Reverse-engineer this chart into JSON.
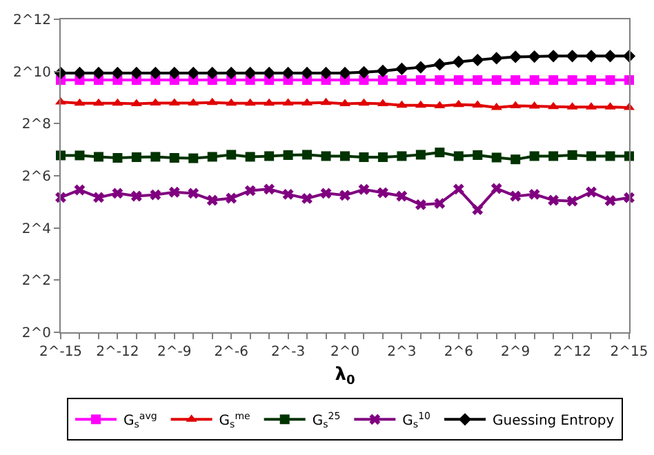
{
  "chart_data": {
    "type": "line",
    "xlabel": "λ$_{0}$",
    "x": [
      3.0517578125e-05,
      6.103515625e-05,
      0.0001220703125,
      0.000244140625,
      0.00048828125,
      0.0009765625,
      0.001953125,
      0.00390625,
      0.0078125,
      0.015625,
      0.03125,
      0.0625,
      0.125,
      0.25,
      0.5,
      1,
      2,
      4,
      8,
      16,
      32,
      64,
      128,
      256,
      512,
      1024,
      2048,
      4096,
      8192,
      16384,
      32768
    ],
    "series": [
      {
        "name": "G$_{s}$$^{avg}$",
        "color": "#ff00ff",
        "marker": "square",
        "values": [
          815,
          815,
          815,
          815,
          815,
          815,
          815,
          815,
          815,
          815,
          815,
          815,
          815,
          815,
          815,
          815,
          815,
          815,
          815,
          815,
          815,
          815,
          815,
          815,
          815,
          815,
          815,
          815,
          815,
          815,
          815
        ]
      },
      {
        "name": "G$_{s}$$^{me}$",
        "color": "#e00000",
        "marker": "triangle",
        "values": [
          455,
          440,
          440,
          440,
          434,
          443,
          443,
          443,
          449,
          440,
          440,
          440,
          443,
          443,
          449,
          434,
          440,
          434,
          416,
          416,
          410,
          425,
          419,
          393,
          410,
          407,
          402,
          398,
          398,
          398,
          393
        ]
      },
      {
        "name": "G$_{s}$$^{25}$",
        "color": "#003300",
        "marker": "square",
        "values": [
          110,
          110,
          106,
          103,
          105,
          106,
          103,
          102,
          106,
          112,
          106,
          108,
          111,
          112,
          108,
          108,
          105,
          105,
          108,
          112,
          119,
          108,
          111,
          104,
          99,
          108,
          108,
          111,
          108,
          108,
          108
        ]
      },
      {
        "name": "G$_{s}$$^{10}$",
        "color": "#800080",
        "marker": "cross",
        "values": [
          36.0,
          44.0,
          36.0,
          40.2,
          37.3,
          38.6,
          41.4,
          40.2,
          33.4,
          35.3,
          43.1,
          44.9,
          39.1,
          35.0,
          40.2,
          38.1,
          44.6,
          40.8,
          37.3,
          29.7,
          30.7,
          44.9,
          26.0,
          45.6,
          37.3,
          39.1,
          33.4,
          32.7,
          41.6,
          33.1,
          35.8
        ]
      },
      {
        "name": "Guessing Entropy",
        "color": "#000000",
        "marker": "diamond",
        "values": [
          982,
          982,
          982,
          982,
          982,
          982,
          982,
          982,
          982,
          982,
          982,
          982,
          982,
          982,
          982,
          982,
          1003,
          1038,
          1097,
          1144,
          1235,
          1323,
          1389,
          1458,
          1510,
          1520,
          1541,
          1541,
          1541,
          1541,
          1541
        ]
      }
    ],
    "log": "xy",
    "xlim": [
      3.0517578125e-05,
      32768
    ],
    "ylim": [
      1,
      4096
    ],
    "xticks": [
      {
        "value": 3.0517578125e-05,
        "label": "2^-15"
      },
      {
        "value": 6.103515625e-05,
        "label": null
      },
      {
        "value": 0.0001220703125,
        "label": null
      },
      {
        "value": 0.000244140625,
        "label": "2^-12"
      },
      {
        "value": 0.00048828125,
        "label": null
      },
      {
        "value": 0.0009765625,
        "label": null
      },
      {
        "value": 0.001953125,
        "label": "2^-9"
      },
      {
        "value": 0.00390625,
        "label": null
      },
      {
        "value": 0.0078125,
        "label": null
      },
      {
        "value": 0.015625,
        "label": "2^-6"
      },
      {
        "value": 0.03125,
        "label": null
      },
      {
        "value": 0.0625,
        "label": null
      },
      {
        "value": 0.125,
        "label": "2^-3"
      },
      {
        "value": 0.25,
        "label": null
      },
      {
        "value": 0.5,
        "label": null
      },
      {
        "value": 1,
        "label": "2^0"
      },
      {
        "value": 2,
        "label": null
      },
      {
        "value": 4,
        "label": null
      },
      {
        "value": 8,
        "label": "2^3"
      },
      {
        "value": 16,
        "label": null
      },
      {
        "value": 32,
        "label": null
      },
      {
        "value": 64,
        "label": "2^6"
      },
      {
        "value": 128,
        "label": null
      },
      {
        "value": 256,
        "label": null
      },
      {
        "value": 512,
        "label": "2^9"
      },
      {
        "value": 1024,
        "label": null
      },
      {
        "value": 2048,
        "label": null
      },
      {
        "value": 4096,
        "label": "2^12"
      },
      {
        "value": 8192,
        "label": null
      },
      {
        "value": 16384,
        "label": null
      },
      {
        "value": 32768,
        "label": "2^15"
      }
    ],
    "yticks": [
      {
        "value": 1,
        "label": "2^0"
      },
      {
        "value": 4,
        "label": "2^2"
      },
      {
        "value": 16,
        "label": "2^4"
      },
      {
        "value": 64,
        "label": "2^6"
      },
      {
        "value": 256,
        "label": "2^8"
      },
      {
        "value": 1024,
        "label": "2^10"
      },
      {
        "value": 4096,
        "label": "2^12"
      }
    ],
    "legend": "bottom",
    "line_style": "solid"
  }
}
